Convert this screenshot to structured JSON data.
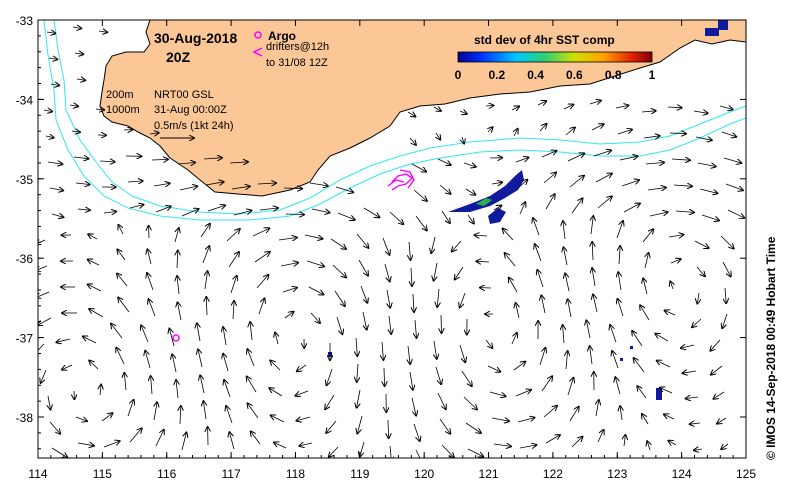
{
  "map": {
    "date": "30-Aug-2018",
    "hour": "20Z",
    "argo_label": "Argo",
    "drifters_label": "drifters@12h",
    "drifters_to": "to 31/08 12Z",
    "isobath_200": "200m",
    "isobath_1000": "1000m",
    "product": "NRT00 GSL",
    "product_time": "31-Aug 00:00Z",
    "scale_label": "0.5m/s (1kt 24h)",
    "colorbar_title": "std dev of 4hr SST comp",
    "colorbar_ticks": [
      "0",
      "0.2",
      "0.4",
      "0.6",
      "0.8",
      "1"
    ],
    "x_ticks": [
      "114",
      "115",
      "116",
      "117",
      "118",
      "119",
      "120",
      "121",
      "122",
      "123",
      "124",
      "125"
    ],
    "y_ticks": [
      "-33",
      "-34",
      "-35",
      "-36",
      "-37",
      "-38"
    ],
    "footer": "© IMOS 14-Sep-2018 00:49 Hobart Time",
    "colors": {
      "land": "#fbc797",
      "isobath": "#33e6f0",
      "argo": "#ff00ff",
      "sst_low": "#101a9c",
      "sst_mid": "#2ab04a"
    }
  }
}
